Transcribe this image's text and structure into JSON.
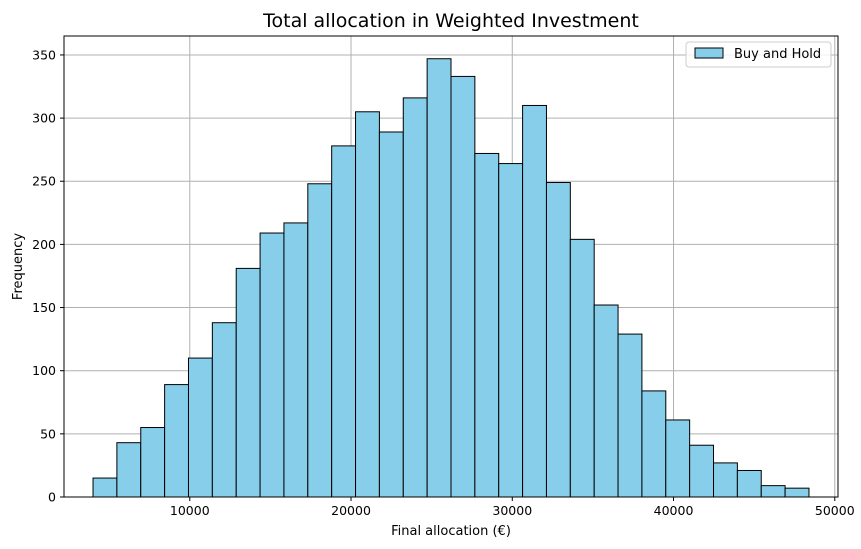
{
  "chart_data": {
    "type": "bar",
    "subtype": "histogram",
    "title": "Total allocation in Weighted Investment",
    "xlabel": "Final allocation (€)",
    "ylabel": "Frequency",
    "xlim": [
      2200,
      50200
    ],
    "ylim": [
      0,
      365
    ],
    "xticks": [
      10000,
      20000,
      30000,
      40000,
      50000
    ],
    "yticks": [
      0,
      50,
      100,
      150,
      200,
      250,
      300,
      350
    ],
    "grid": true,
    "legend_position": "top-right",
    "bin_start": 4000,
    "bin_width": 1480,
    "series": [
      {
        "name": "Buy and Hold",
        "values": [
          15,
          43,
          55,
          89,
          110,
          138,
          181,
          209,
          217,
          248,
          278,
          305,
          289,
          316,
          347,
          333,
          272,
          264,
          310,
          249,
          204,
          152,
          129,
          84,
          61,
          41,
          27,
          21,
          9,
          7
        ]
      }
    ],
    "colors": {
      "bar_fill": "#87CEEB",
      "bar_edge": "#000000",
      "grid": "#b0b0b0"
    }
  }
}
